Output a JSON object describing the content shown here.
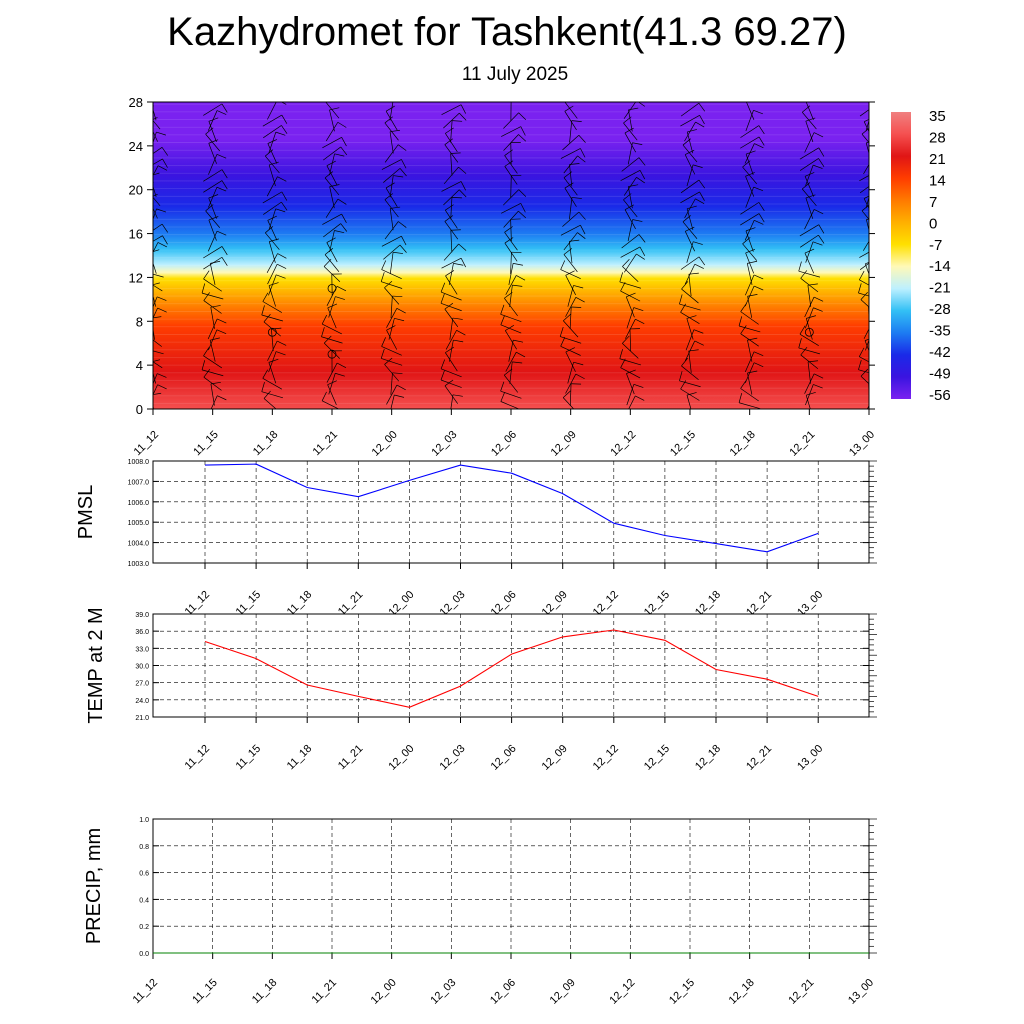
{
  "header": {
    "title": "Kazhydromet for Tashkent(41.3 69.27)",
    "subtitle": "11 July 2025"
  },
  "chart_data": [
    {
      "type": "heatmap",
      "name": "temperature-height-section",
      "ylabel": "",
      "ylim": [
        0,
        28
      ],
      "yticks": [
        "0",
        "4",
        "8",
        "12",
        "16",
        "20",
        "24",
        "28"
      ],
      "x": [
        "11_12",
        "11_15",
        "11_18",
        "11_21",
        "12_00",
        "12_03",
        "12_06",
        "12_09",
        "12_12",
        "12_15",
        "12_18",
        "12_21",
        "13_00"
      ],
      "colorbar_labels": [
        "35",
        "28",
        "21",
        "14",
        "7",
        "0",
        "-7",
        "-14",
        "-21",
        "-28",
        "-35",
        "-42",
        "-49",
        "-56"
      ],
      "colorbar_colors": [
        "#f08080",
        "#f55050",
        "#e01515",
        "#ff3d00",
        "#ff7a00",
        "#ffb000",
        "#ffe000",
        "#fff9b8",
        "#bdf0ff",
        "#33c0f5",
        "#1d7cf2",
        "#1a2ae8",
        "#3a14e0",
        "#7a22f0"
      ],
      "grid": false,
      "overlay": "wind barbs"
    },
    {
      "type": "line",
      "name": "pmsl",
      "ylabel": "PMSL",
      "ylim": [
        1003.0,
        1008.0
      ],
      "yticks": [
        "1003.0",
        "1004.0",
        "1005.0",
        "1006.0",
        "1007.0",
        "1008.0"
      ],
      "x": [
        "11_12",
        "11_15",
        "11_18",
        "11_21",
        "12_00",
        "12_03",
        "12_06",
        "12_09",
        "12_12",
        "12_15",
        "12_18",
        "12_21",
        "13_00"
      ],
      "series": [
        {
          "values": [
            1007.8,
            1007.85,
            1006.7,
            1006.25,
            1007.05,
            1007.8,
            1007.4,
            1006.4,
            1004.95,
            1004.35,
            1003.95,
            1003.55,
            1004.45
          ],
          "color": "#0000ff"
        }
      ],
      "grid": true
    },
    {
      "type": "line",
      "name": "temp-2m",
      "ylabel": "TEMP at 2 M",
      "ylim": [
        21.0,
        39.0
      ],
      "yticks": [
        "21.0",
        "24.0",
        "27.0",
        "30.0",
        "33.0",
        "36.0",
        "39.0"
      ],
      "x": [
        "11_12",
        "11_15",
        "11_18",
        "11_21",
        "12_00",
        "12_03",
        "12_06",
        "12_09",
        "12_12",
        "12_15",
        "12_18",
        "12_21",
        "13_00"
      ],
      "series": [
        {
          "values": [
            34.2,
            31.2,
            26.6,
            24.6,
            22.7,
            26.4,
            32.0,
            35.0,
            36.2,
            34.4,
            29.3,
            27.6,
            24.6
          ],
          "color": "#ff0000"
        }
      ],
      "grid": true
    },
    {
      "type": "line",
      "name": "precip",
      "ylabel": "PRECIP, mm",
      "ylim": [
        0.0,
        1.0
      ],
      "yticks": [
        "0.0",
        "0.2",
        "0.4",
        "0.6",
        "0.8",
        "1.0"
      ],
      "x": [
        "11_12",
        "11_15",
        "11_18",
        "11_21",
        "12_00",
        "12_03",
        "12_06",
        "12_09",
        "12_12",
        "12_15",
        "12_18",
        "12_21",
        "13_00"
      ],
      "series": [
        {
          "values": [
            0,
            0,
            0,
            0,
            0,
            0,
            0,
            0,
            0,
            0,
            0,
            0,
            0
          ],
          "color": "#008000"
        }
      ],
      "grid": true
    }
  ]
}
